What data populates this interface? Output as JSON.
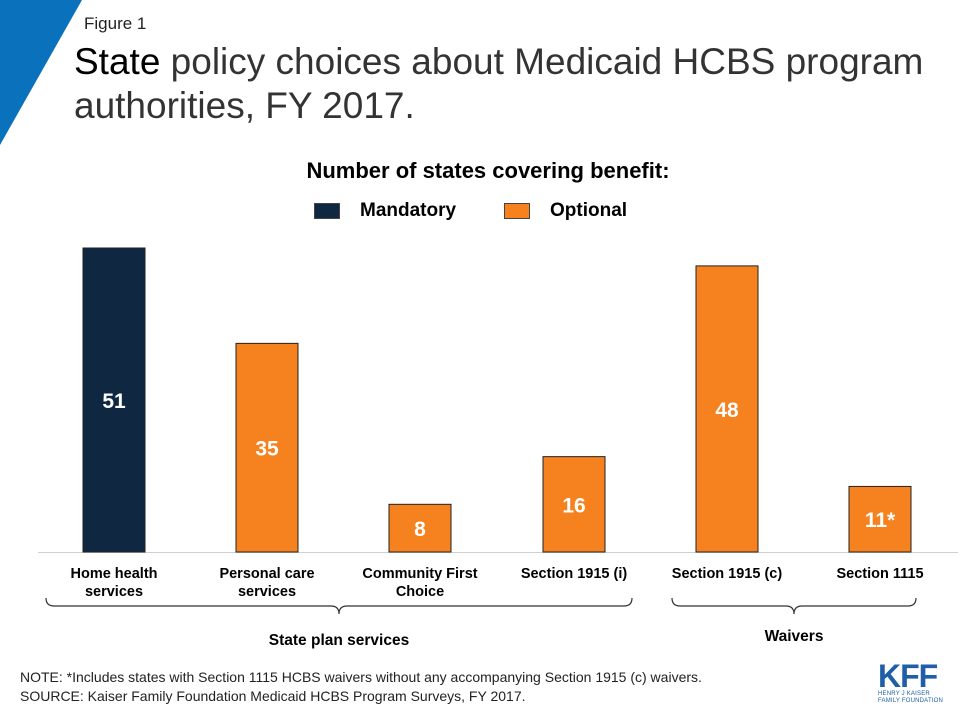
{
  "figure_label": "Figure 1",
  "title_first": "State",
  "title_rest": " policy choices about Medicaid HCBS program authorities, FY 2017.",
  "colors": {
    "mandatory": "#0f2740",
    "optional": "#f5821f",
    "accent": "#0a72bd"
  },
  "chart_data": {
    "type": "bar",
    "title": "Number of states covering benefit:",
    "legend": [
      "Mandatory",
      "Optional"
    ],
    "legend_position": "top",
    "categories": [
      "Home health\nservices",
      "Personal care\nservices",
      "Community First\nChoice",
      "Section 1915 (i)",
      "Section 1915 (c)",
      "Section 1115"
    ],
    "values": [
      51,
      35,
      8,
      16,
      48,
      11
    ],
    "data_labels": [
      "51",
      "35",
      "8",
      "16",
      "48",
      "11*"
    ],
    "bar_types": [
      "Mandatory",
      "Optional",
      "Optional",
      "Optional",
      "Optional",
      "Optional"
    ],
    "groups": [
      {
        "label": "State plan services",
        "categories": [
          0,
          1,
          2,
          3
        ]
      },
      {
        "label": "Waivers",
        "categories": [
          4,
          5
        ]
      }
    ],
    "ylim": [
      0,
      51
    ],
    "grid": false
  },
  "note": "NOTE: *Includes states with Section 1115 HCBS waivers without any accompanying Section 1915 (c) waivers.",
  "source": "SOURCE:  Kaiser Family Foundation Medicaid HCBS Program Surveys, FY 2017.",
  "logo": {
    "main": "KFF",
    "line1": "HENRY J KAISER",
    "line2": "FAMILY FOUNDATION"
  }
}
